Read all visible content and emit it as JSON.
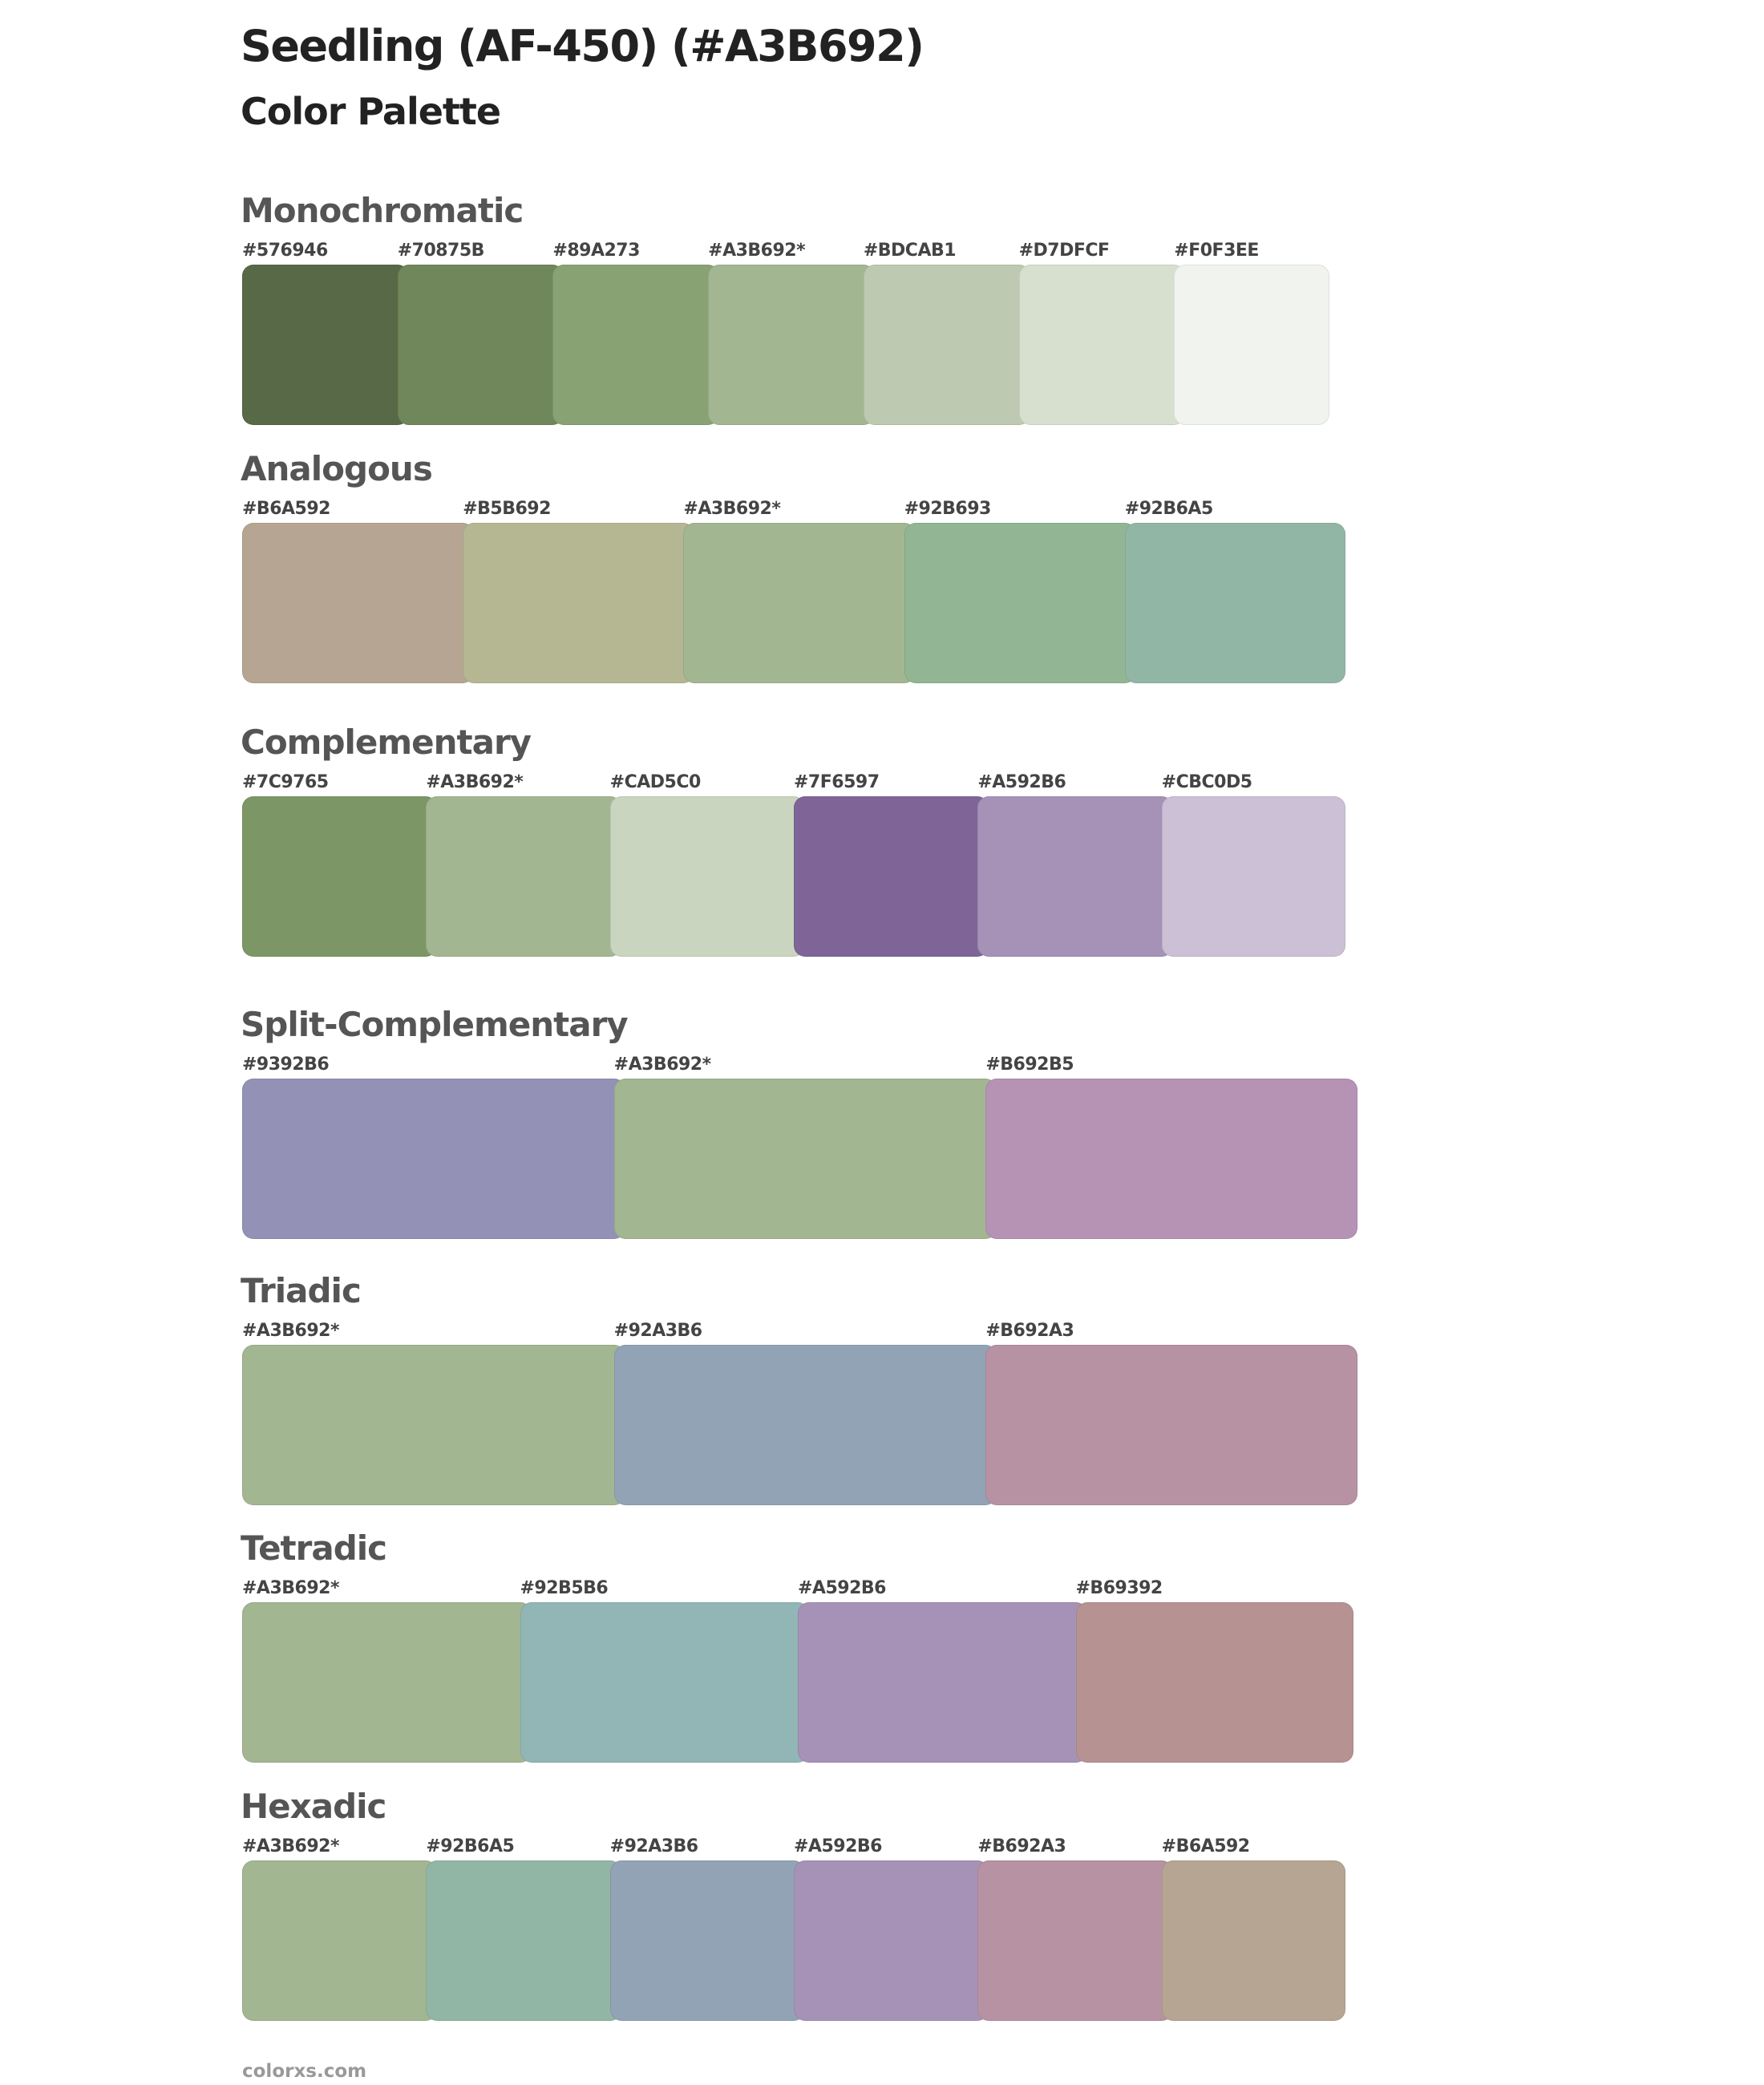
{
  "header": {
    "title": "Seedling (AF-450) (#A3B692)",
    "subtitle": "Color Palette"
  },
  "sections": [
    {
      "name": "Monochromatic",
      "colors": [
        {
          "label": "#576946",
          "hex": "#576946"
        },
        {
          "label": "#70875B",
          "hex": "#70875B"
        },
        {
          "label": "#89A273",
          "hex": "#89A273"
        },
        {
          "label": "#A3B692*",
          "hex": "#A3B692"
        },
        {
          "label": "#BDCAB1",
          "hex": "#BDCAB1"
        },
        {
          "label": "#D7DFCF",
          "hex": "#D7DFCF"
        },
        {
          "label": "#F0F3EE",
          "hex": "#F0F3EE"
        }
      ]
    },
    {
      "name": "Analogous",
      "colors": [
        {
          "label": "#B6A592",
          "hex": "#B6A592"
        },
        {
          "label": "#B5B692",
          "hex": "#B5B692"
        },
        {
          "label": "#A3B692*",
          "hex": "#A3B692"
        },
        {
          "label": "#92B693",
          "hex": "#92B693"
        },
        {
          "label": "#92B6A5",
          "hex": "#92B6A5"
        }
      ]
    },
    {
      "name": "Complementary",
      "colors": [
        {
          "label": "#7C9765",
          "hex": "#7C9765"
        },
        {
          "label": "#A3B692*",
          "hex": "#A3B692"
        },
        {
          "label": "#CAD5C0",
          "hex": "#CAD5C0"
        },
        {
          "label": "#7F6597",
          "hex": "#7F6597"
        },
        {
          "label": "#A592B6",
          "hex": "#A592B6"
        },
        {
          "label": "#CBC0D5",
          "hex": "#CBC0D5"
        }
      ]
    },
    {
      "name": "Split-Complementary",
      "colors": [
        {
          "label": "#9392B6",
          "hex": "#9392B6"
        },
        {
          "label": "#A3B692*",
          "hex": "#A3B692"
        },
        {
          "label": "#B692B5",
          "hex": "#B692B5"
        }
      ]
    },
    {
      "name": "Triadic",
      "colors": [
        {
          "label": "#A3B692*",
          "hex": "#A3B692"
        },
        {
          "label": "#92A3B6",
          "hex": "#92A3B6"
        },
        {
          "label": "#B692A3",
          "hex": "#B692A3"
        }
      ]
    },
    {
      "name": "Tetradic",
      "colors": [
        {
          "label": "#A3B692*",
          "hex": "#A3B692"
        },
        {
          "label": "#92B5B6",
          "hex": "#92B5B6"
        },
        {
          "label": "#A592B6",
          "hex": "#A592B6"
        },
        {
          "label": "#B69392",
          "hex": "#B69392"
        }
      ]
    },
    {
      "name": "Hexadic",
      "colors": [
        {
          "label": "#A3B692*",
          "hex": "#A3B692"
        },
        {
          "label": "#92B6A5",
          "hex": "#92B6A5"
        },
        {
          "label": "#92A3B6",
          "hex": "#92A3B6"
        },
        {
          "label": "#A592B6",
          "hex": "#A592B6"
        },
        {
          "label": "#B692A3",
          "hex": "#B692A3"
        },
        {
          "label": "#B6A592",
          "hex": "#B6A592"
        }
      ]
    }
  ],
  "footer": {
    "text": "colorxs.com"
  }
}
